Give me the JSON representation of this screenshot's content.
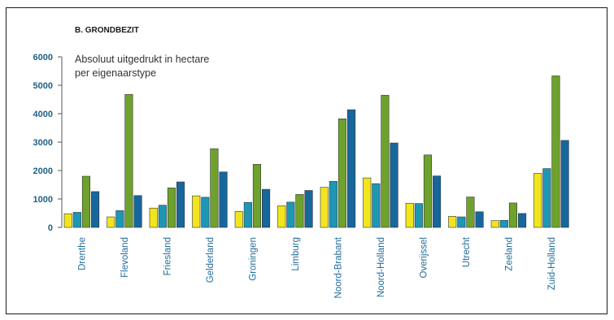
{
  "chart_data": {
    "type": "bar",
    "title": "B. GRONDBEZIT",
    "subtitle": [
      "Absoluut uitgedrukt in hectare",
      "per eigenaarstype"
    ],
    "xlabel": "",
    "ylabel": "",
    "ylim": [
      0,
      6000
    ],
    "yticks": [
      0,
      1000,
      2000,
      3000,
      4000,
      5000,
      6000
    ],
    "grid": false,
    "legend": "none",
    "categories": [
      "Drenthe",
      "Flevoland",
      "Friesland",
      "Gelderland",
      "Groningen",
      "Limburg",
      "Noord-Brabant",
      "Noord-Holland",
      "Overijssel",
      "Utrecht",
      "Zeeland",
      "Zuid-Holland"
    ],
    "series": [
      {
        "color": "#f2e51e",
        "values": [
          480,
          370,
          680,
          1110,
          560,
          760,
          1410,
          1740,
          850,
          390,
          240,
          1900
        ]
      },
      {
        "color": "#1e97b5",
        "values": [
          530,
          590,
          780,
          1060,
          880,
          890,
          1620,
          1540,
          840,
          370,
          250,
          2070
        ]
      },
      {
        "color": "#6ea22d",
        "values": [
          1800,
          4680,
          1390,
          2770,
          2220,
          1160,
          3820,
          4650,
          2550,
          1070,
          860,
          5330
        ]
      },
      {
        "color": "#17679c",
        "values": [
          1260,
          1120,
          1600,
          1950,
          1340,
          1300,
          4140,
          2970,
          1810,
          550,
          490,
          3060
        ]
      }
    ]
  }
}
